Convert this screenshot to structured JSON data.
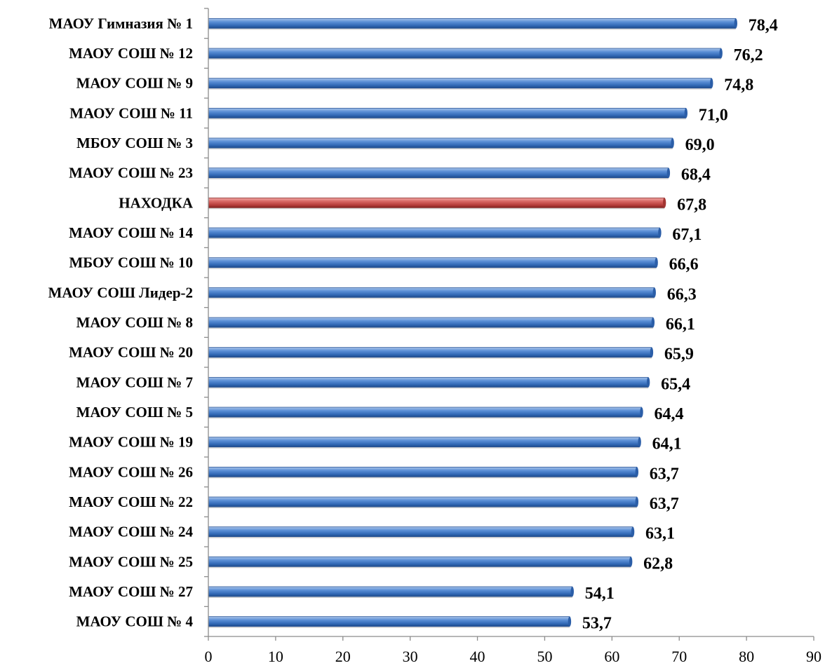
{
  "chart_data": {
    "type": "bar",
    "orientation": "horizontal",
    "title": "",
    "xlabel": "",
    "ylabel": "",
    "xlim": [
      0,
      90
    ],
    "x_ticks": [
      0,
      10,
      20,
      30,
      40,
      50,
      60,
      70,
      80,
      90
    ],
    "grid": false,
    "legend": "none",
    "categories": [
      "МАОУ Гимназия № 1",
      "МАОУ СОШ № 12",
      "МАОУ СОШ № 9",
      "МАОУ СОШ № 11",
      "МБОУ СОШ № 3",
      "МАОУ СОШ № 23",
      "НАХОДКА",
      "МАОУ СОШ № 14",
      "МБОУ СОШ № 10",
      "МАОУ СОШ Лидер-2",
      "МАОУ СОШ № 8",
      "МАОУ СОШ № 20",
      "МАОУ СОШ № 7",
      "МАОУ СОШ № 5",
      "МАОУ СОШ № 19",
      "МАОУ СОШ № 26",
      "МАОУ СОШ № 22",
      "МАОУ СОШ № 24",
      "МАОУ СОШ № 25",
      "МАОУ СОШ № 27",
      "МАОУ СОШ № 4"
    ],
    "values": [
      78.4,
      76.2,
      74.8,
      71.0,
      69.0,
      68.4,
      67.8,
      67.1,
      66.6,
      66.3,
      66.1,
      65.9,
      65.4,
      64.4,
      64.1,
      63.7,
      63.7,
      63.1,
      62.8,
      54.1,
      53.7
    ],
    "value_labels": [
      "78,4",
      "76,2",
      "74,8",
      "71,0",
      "69,0",
      "68,4",
      "67,8",
      "67,1",
      "66,6",
      "66,3",
      "66,1",
      "65,9",
      "65,4",
      "64,4",
      "64,1",
      "63,7",
      "63,7",
      "63,1",
      "62,8",
      "54,1",
      "53,7"
    ],
    "colors": {
      "default_bar": "#4f81bd",
      "highlight_bar": "#c0504d",
      "highlight_category": "НАХОДКА"
    }
  }
}
